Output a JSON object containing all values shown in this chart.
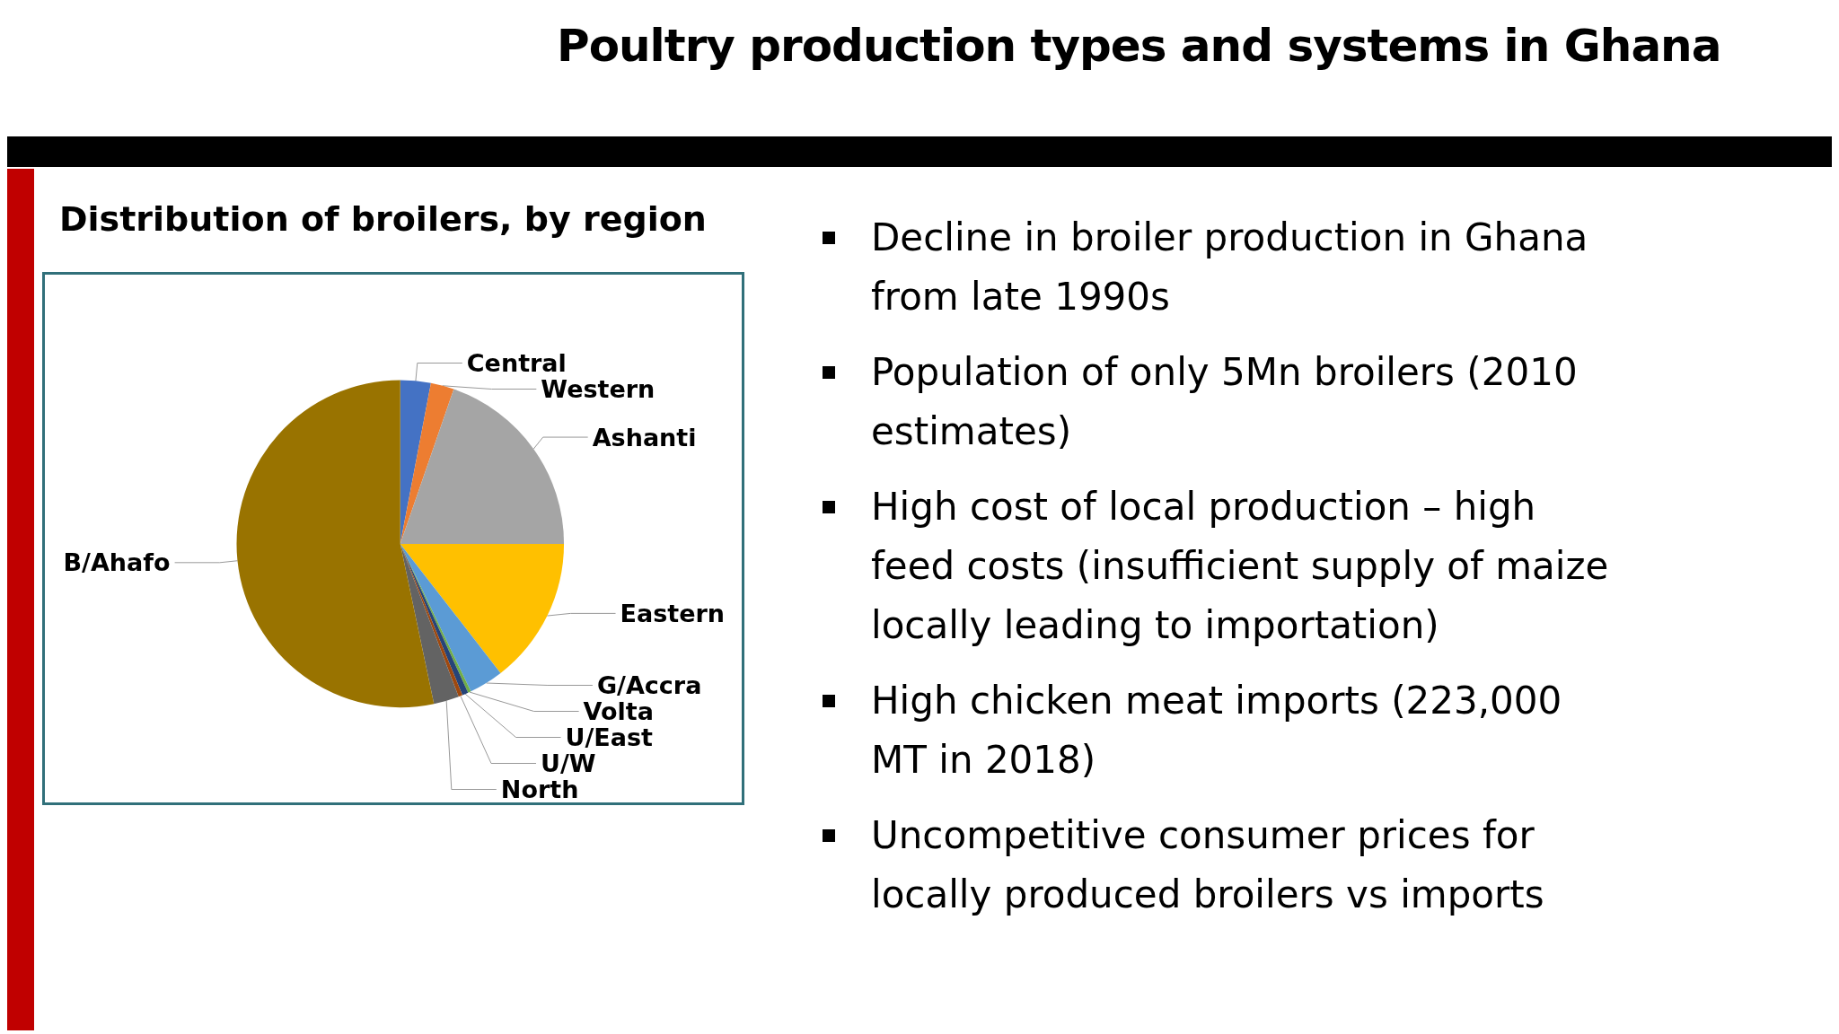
{
  "chart_data": {
    "type": "pie",
    "title": "Poultry production types and systems in Ghana",
    "subtitle": "Distribution of broilers, by region",
    "categories": [
      "Central",
      "Western",
      "Ashanti",
      "Eastern",
      "G/Accra",
      "Volta",
      "U/East",
      "U/W",
      "North",
      "B/Ahafo"
    ],
    "values": [
      3,
      2.3,
      19.7,
      14.5,
      3.4,
      0.3,
      0.6,
      0.4,
      2.5,
      53.3
    ],
    "colors": [
      "#4472c4",
      "#ed7d31",
      "#a5a5a5",
      "#ffc000",
      "#5b9bd5",
      "#70ad47",
      "#264478",
      "#9e480e",
      "#636363",
      "#997300"
    ],
    "legend": false,
    "annotations": [
      "Decline in broiler production in Ghana from late 1990s",
      "Population of only 5Mn broilers (2010 estimates)",
      "High cost of local production – high feed costs (insufficient supply of maize locally leading to importation)",
      "High chicken meat imports (223,000 MT in 2018)",
      "Uncompetitive consumer prices for locally produced broilers vs imports"
    ]
  }
}
